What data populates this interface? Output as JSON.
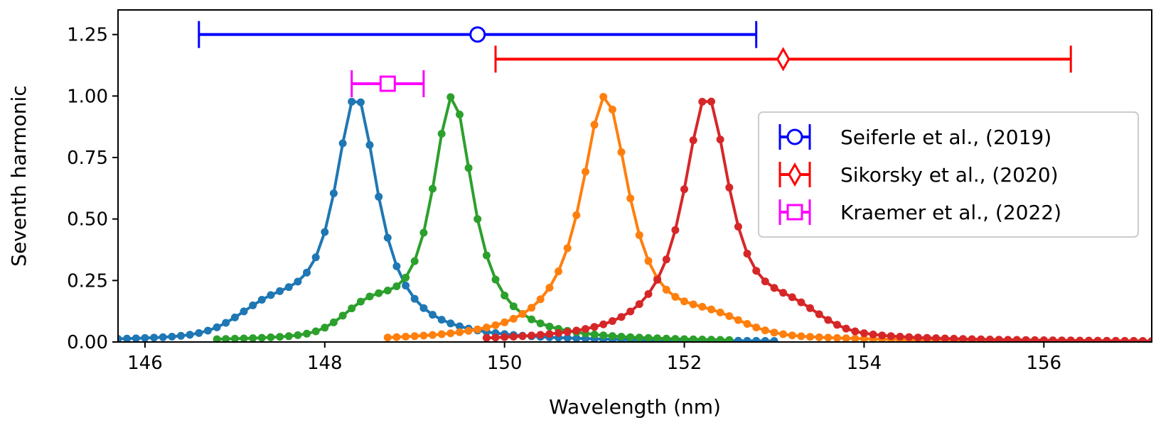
{
  "chart_data": {
    "type": "line",
    "title": "",
    "xlabel": "Wavelength (nm)",
    "ylabel": "Seventh harmonic",
    "xlim": [
      145.7,
      157.2
    ],
    "ylim": [
      0.0,
      1.35
    ],
    "x_ticks": [
      146,
      148,
      150,
      152,
      154,
      156
    ],
    "x_tick_labels": [
      "146",
      "148",
      "150",
      "152",
      "154",
      "156"
    ],
    "y_ticks": [
      0.0,
      0.25,
      0.5,
      0.75,
      1.0,
      1.25
    ],
    "y_tick_labels": [
      "0.00",
      "0.25",
      "0.50",
      "0.75",
      "1.00",
      "1.25"
    ],
    "grid": false,
    "legend_position": "right",
    "spectra": [
      {
        "color": "#1f77b4",
        "center": 148.35,
        "width": 0.3,
        "x_start": 145.7,
        "x_end": 153.0,
        "shoulder": {
          "center": 147.4,
          "width": 0.5,
          "amplitude": 0.1
        }
      },
      {
        "color": "#2ca02c",
        "center": 149.42,
        "width": 0.28,
        "x_start": 146.8,
        "x_end": 152.5,
        "shoulder": {
          "center": 148.5,
          "width": 0.4,
          "amplitude": 0.1
        }
      },
      {
        "color": "#ff7f0e",
        "center": 151.12,
        "width": 0.33,
        "x_start": 148.7,
        "x_end": 157.2,
        "shoulder": {
          "center": 152.3,
          "width": 0.5,
          "amplitude": 0.06
        }
      },
      {
        "color": "#d62728",
        "center": 152.25,
        "width": 0.32,
        "x_start": 149.8,
        "x_end": 157.2,
        "shoulder": {
          "center": 153.2,
          "width": 0.45,
          "amplitude": 0.08
        }
      }
    ],
    "error_bars": [
      {
        "label": "Seiferle et al., (2019)",
        "x": 149.7,
        "xmin": 146.6,
        "xmax": 152.8,
        "y": 1.25,
        "color": "#0000ff",
        "marker": "circle"
      },
      {
        "label": "Sikorsky et al., (2020)",
        "x": 153.1,
        "xmin": 149.9,
        "xmax": 156.3,
        "y": 1.15,
        "color": "#ff0000",
        "marker": "diamond"
      },
      {
        "label": "Kraemer et al., (2022)",
        "x": 148.7,
        "xmin": 148.3,
        "xmax": 149.1,
        "y": 1.05,
        "color": "#ff00ff",
        "marker": "square"
      }
    ]
  }
}
